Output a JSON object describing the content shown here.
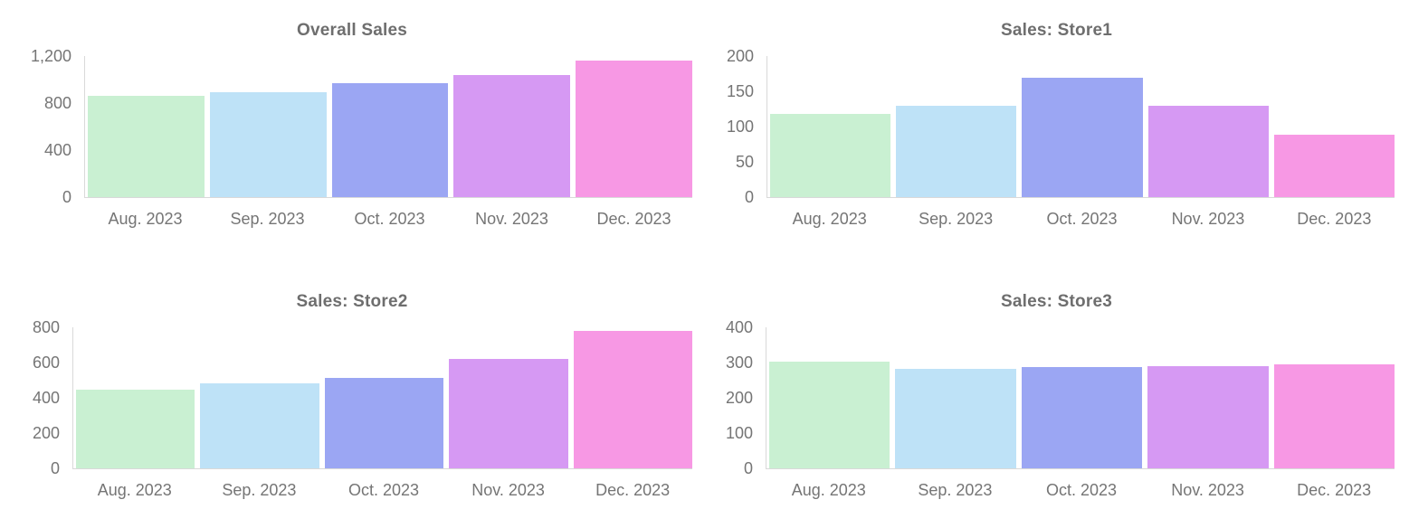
{
  "palette": [
    "#c9f0d2",
    "#bee2f7",
    "#9ba6f3",
    "#d699f3",
    "#f798e4"
  ],
  "colors": {
    "title_text": "#6e6e6e",
    "axis_text": "#757575",
    "axis_line": "#d9d9d9",
    "background": "#ffffff"
  },
  "chart_data": [
    {
      "type": "bar",
      "title": "Overall Sales",
      "categories": [
        "Aug. 2023",
        "Sep. 2023",
        "Oct. 2023",
        "Nov. 2023",
        "Dec. 2023"
      ],
      "values": [
        865,
        892,
        972,
        1039,
        1165
      ],
      "xlabel": "",
      "ylabel": "",
      "ylim": [
        0,
        1200
      ],
      "ytick_labels": [
        "0",
        "400",
        "800",
        "1,200"
      ],
      "grid": false,
      "legend": "none"
    },
    {
      "type": "bar",
      "title": "Sales: Store1",
      "categories": [
        "Aug. 2023",
        "Sep. 2023",
        "Oct. 2023",
        "Nov. 2023",
        "Dec. 2023"
      ],
      "values": [
        118,
        129,
        169,
        129,
        89
      ],
      "xlabel": "",
      "ylabel": "",
      "ylim": [
        0,
        200
      ],
      "ytick_labels": [
        "0",
        "50",
        "100",
        "150",
        "200"
      ],
      "grid": false,
      "legend": "none"
    },
    {
      "type": "bar",
      "title": "Sales: Store2",
      "categories": [
        "Aug. 2023",
        "Sep. 2023",
        "Oct. 2023",
        "Nov. 2023",
        "Dec. 2023"
      ],
      "values": [
        445,
        481,
        515,
        620,
        780
      ],
      "xlabel": "",
      "ylabel": "",
      "ylim": [
        0,
        800
      ],
      "ytick_labels": [
        "0",
        "200",
        "400",
        "600",
        "800"
      ],
      "grid": false,
      "legend": "none"
    },
    {
      "type": "bar",
      "title": "Sales: Store3",
      "categories": [
        "Aug. 2023",
        "Sep. 2023",
        "Oct. 2023",
        "Nov. 2023",
        "Dec. 2023"
      ],
      "values": [
        302,
        282,
        288,
        290,
        296
      ],
      "xlabel": "",
      "ylabel": "",
      "ylim": [
        0,
        400
      ],
      "ytick_labels": [
        "0",
        "100",
        "200",
        "300",
        "400"
      ],
      "grid": false,
      "legend": "none"
    }
  ]
}
